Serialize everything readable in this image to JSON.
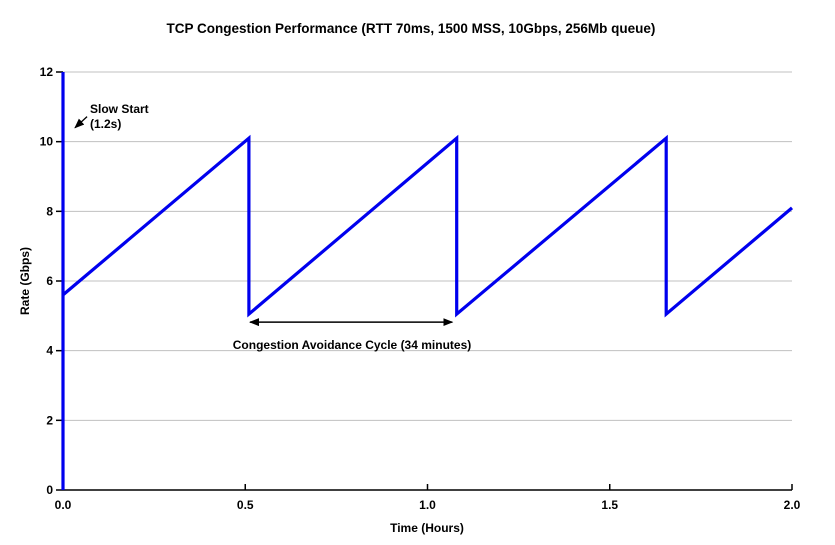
{
  "colors": {
    "series": "#0000EE",
    "gridline": "#C0C0C0",
    "axis": "#000000",
    "text": "#000000",
    "background": "#FFFFFF",
    "annotation_arrow": "#000000"
  },
  "chart_data": {
    "type": "line",
    "title": "TCP Congestion Performance (RTT 70ms, 1500 MSS, 10Gbps, 256Mb queue)",
    "xlabel": "Time (Hours)",
    "ylabel": "Rate (Gbps)",
    "xlim": [
      0,
      2.0
    ],
    "ylim": [
      0,
      12
    ],
    "x_tick_labels": [
      "0.0",
      "0.5",
      "1.0",
      "1.5",
      "2.0"
    ],
    "x_tick_values": [
      0,
      0.5,
      1.0,
      1.5,
      2.0
    ],
    "y_tick_labels": [
      "0",
      "2",
      "4",
      "6",
      "8",
      "10",
      "12"
    ],
    "y_tick_values": [
      0,
      2,
      4,
      6,
      8,
      10,
      12
    ],
    "grid": "horizontal",
    "legend": "none",
    "series": [
      {
        "color": "#0000EE",
        "points": [
          [
            0,
            0
          ],
          [
            0,
            12
          ],
          [
            0,
            5.6
          ],
          [
            0.51,
            10.1
          ],
          [
            0.51,
            5.05
          ],
          [
            1.08,
            10.1
          ],
          [
            1.08,
            5.05
          ],
          [
            1.655,
            10.1
          ],
          [
            1.655,
            5.05
          ],
          [
            2.0,
            8.1
          ]
        ]
      }
    ],
    "annotations": {
      "slow_start": {
        "line1": "Slow Start",
        "line2": "(1.2s)",
        "arrow_from_xy": [
          0.066,
          10.72
        ],
        "arrow_to_xy": [
          0.033,
          10.4
        ]
      },
      "cycle": {
        "label": "Congestion Avoidance Cycle (34 minutes)",
        "from_x": 0.513,
        "to_x": 1.068,
        "y": 4.82
      }
    }
  }
}
